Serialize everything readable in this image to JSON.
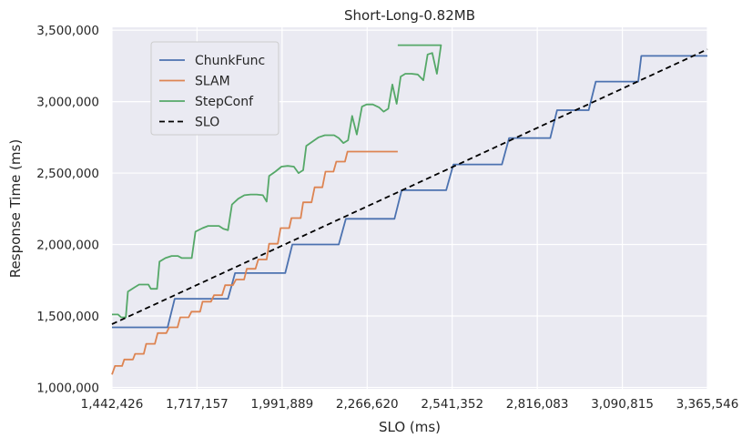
{
  "chart_data": {
    "type": "line",
    "title": "Short-Long-0.82MB",
    "xlabel": "SLO (ms)",
    "ylabel": "Response Time (ms)",
    "xlim": [
      1442426,
      3365546
    ],
    "ylim": [
      990000,
      3520000
    ],
    "grid": true,
    "legend_position": "upper-left",
    "x_ticks": [
      {
        "value": 1442426,
        "label": "1,442,426"
      },
      {
        "value": 1717157,
        "label": "1,717,157"
      },
      {
        "value": 1991889,
        "label": "1,991,889"
      },
      {
        "value": 2266620,
        "label": "2,266,620"
      },
      {
        "value": 2541352,
        "label": "2,541,352"
      },
      {
        "value": 2816083,
        "label": "2,816,083"
      },
      {
        "value": 3090815,
        "label": "3,090,815"
      },
      {
        "value": 3365546,
        "label": "3,365,546"
      }
    ],
    "y_ticks": [
      {
        "value": 1000000,
        "label": "1,000,000"
      },
      {
        "value": 1500000,
        "label": "1,500,000"
      },
      {
        "value": 2000000,
        "label": "2,000,000"
      },
      {
        "value": 2500000,
        "label": "2,500,000"
      },
      {
        "value": 3000000,
        "label": "3,000,000"
      },
      {
        "value": 3500000,
        "label": "3,500,000"
      }
    ],
    "series": [
      {
        "name": "ChunkFunc",
        "color": "#4c72b0",
        "dashed": false,
        "points": [
          [
            1442426,
            1420000
          ],
          [
            1622000,
            1420000
          ],
          [
            1645000,
            1620000
          ],
          [
            1817000,
            1620000
          ],
          [
            1840000,
            1800000
          ],
          [
            2002000,
            1800000
          ],
          [
            2025000,
            2000000
          ],
          [
            2175000,
            2000000
          ],
          [
            2198000,
            2180000
          ],
          [
            2355000,
            2180000
          ],
          [
            2378000,
            2380000
          ],
          [
            2522000,
            2380000
          ],
          [
            2545000,
            2560000
          ],
          [
            2702000,
            2560000
          ],
          [
            2725000,
            2745000
          ],
          [
            2858000,
            2745000
          ],
          [
            2880000,
            2940000
          ],
          [
            2982000,
            2940000
          ],
          [
            3005000,
            3140000
          ],
          [
            3142000,
            3140000
          ],
          [
            3152000,
            3320000
          ],
          [
            3365546,
            3320000
          ]
        ]
      },
      {
        "name": "SLAM",
        "color": "#dd8452",
        "dashed": false,
        "points": [
          [
            1442426,
            1090000
          ],
          [
            1452000,
            1150000
          ],
          [
            1475000,
            1150000
          ],
          [
            1482000,
            1195000
          ],
          [
            1510000,
            1195000
          ],
          [
            1517000,
            1235000
          ],
          [
            1545000,
            1235000
          ],
          [
            1553000,
            1305000
          ],
          [
            1581000,
            1305000
          ],
          [
            1590000,
            1380000
          ],
          [
            1618000,
            1380000
          ],
          [
            1627000,
            1420000
          ],
          [
            1654000,
            1420000
          ],
          [
            1663000,
            1490000
          ],
          [
            1690000,
            1490000
          ],
          [
            1699000,
            1530000
          ],
          [
            1727000,
            1530000
          ],
          [
            1735000,
            1600000
          ],
          [
            1762000,
            1600000
          ],
          [
            1772000,
            1645000
          ],
          [
            1798000,
            1645000
          ],
          [
            1808000,
            1715000
          ],
          [
            1833000,
            1715000
          ],
          [
            1843000,
            1755000
          ],
          [
            1869000,
            1755000
          ],
          [
            1878000,
            1830000
          ],
          [
            1906000,
            1830000
          ],
          [
            1915000,
            1895000
          ],
          [
            1942000,
            1895000
          ],
          [
            1950000,
            2005000
          ],
          [
            1978000,
            2005000
          ],
          [
            1987000,
            2115000
          ],
          [
            2015000,
            2115000
          ],
          [
            2022000,
            2185000
          ],
          [
            2052000,
            2185000
          ],
          [
            2060000,
            2295000
          ],
          [
            2087000,
            2295000
          ],
          [
            2097000,
            2400000
          ],
          [
            2122000,
            2400000
          ],
          [
            2132000,
            2510000
          ],
          [
            2158000,
            2510000
          ],
          [
            2167000,
            2580000
          ],
          [
            2195000,
            2580000
          ],
          [
            2203000,
            2650000
          ],
          [
            2365546,
            2650000
          ]
        ]
      },
      {
        "name": "StepConf",
        "color": "#55a868",
        "dashed": false,
        "points": [
          [
            1442426,
            1510000
          ],
          [
            1462000,
            1510000
          ],
          [
            1472000,
            1490000
          ],
          [
            1487000,
            1490000
          ],
          [
            1494000,
            1670000
          ],
          [
            1515000,
            1700000
          ],
          [
            1530000,
            1720000
          ],
          [
            1545000,
            1720000
          ],
          [
            1560000,
            1720000
          ],
          [
            1568000,
            1690000
          ],
          [
            1588000,
            1690000
          ],
          [
            1596000,
            1880000
          ],
          [
            1615000,
            1905000
          ],
          [
            1635000,
            1920000
          ],
          [
            1655000,
            1920000
          ],
          [
            1668000,
            1905000
          ],
          [
            1700000,
            1905000
          ],
          [
            1712000,
            2090000
          ],
          [
            1735000,
            2115000
          ],
          [
            1753000,
            2130000
          ],
          [
            1772000,
            2130000
          ],
          [
            1788000,
            2130000
          ],
          [
            1802000,
            2110000
          ],
          [
            1817000,
            2100000
          ],
          [
            1830000,
            2280000
          ],
          [
            1850000,
            2320000
          ],
          [
            1870000,
            2345000
          ],
          [
            1890000,
            2350000
          ],
          [
            1910000,
            2350000
          ],
          [
            1930000,
            2345000
          ],
          [
            1942000,
            2300000
          ],
          [
            1950000,
            2480000
          ],
          [
            1970000,
            2510000
          ],
          [
            1990000,
            2545000
          ],
          [
            2010000,
            2550000
          ],
          [
            2030000,
            2545000
          ],
          [
            2045000,
            2500000
          ],
          [
            2060000,
            2520000
          ],
          [
            2070000,
            2690000
          ],
          [
            2090000,
            2720000
          ],
          [
            2110000,
            2750000
          ],
          [
            2130000,
            2765000
          ],
          [
            2160000,
            2765000
          ],
          [
            2175000,
            2745000
          ],
          [
            2190000,
            2710000
          ],
          [
            2205000,
            2730000
          ],
          [
            2218000,
            2900000
          ],
          [
            2233000,
            2770000
          ],
          [
            2250000,
            2965000
          ],
          [
            2265000,
            2980000
          ],
          [
            2285000,
            2980000
          ],
          [
            2305000,
            2960000
          ],
          [
            2320000,
            2930000
          ],
          [
            2335000,
            2950000
          ],
          [
            2348000,
            3120000
          ],
          [
            2362000,
            2985000
          ],
          [
            2375000,
            3175000
          ],
          [
            2390000,
            3195000
          ],
          [
            2410000,
            3195000
          ],
          [
            2430000,
            3190000
          ],
          [
            2448000,
            3150000
          ],
          [
            2462000,
            3330000
          ],
          [
            2477000,
            3340000
          ],
          [
            2492000,
            3195000
          ],
          [
            2505000,
            3395000
          ],
          [
            2365546,
            3395000
          ]
        ]
      },
      {
        "name": "SLO",
        "color": "#000000",
        "dashed": true,
        "points": [
          [
            1442426,
            1442426
          ],
          [
            3365546,
            3365546
          ]
        ]
      }
    ]
  }
}
